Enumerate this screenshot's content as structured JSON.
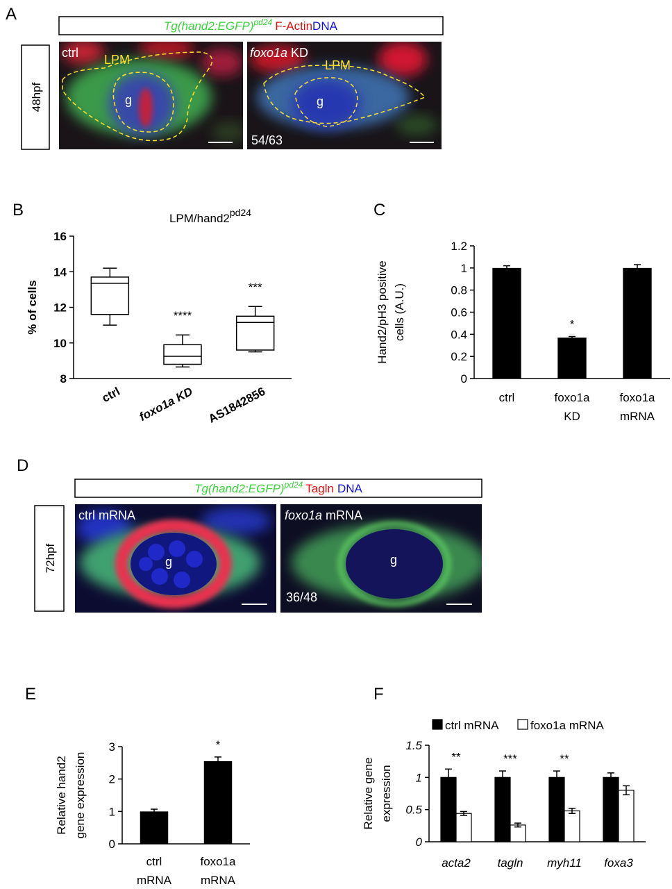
{
  "panel_labels": [
    "A",
    "B",
    "C",
    "D",
    "E",
    "F"
  ],
  "panel_a": {
    "header": [
      "Tg(hand2:EGFP)",
      "pd24",
      "F-Actin",
      "DNA"
    ],
    "stage": "48hpf",
    "left": {
      "label": "ctrl",
      "region": "LPM",
      "gut": "g"
    },
    "right": {
      "label_italic": "foxo1a",
      "label": "KD",
      "region": "LPM",
      "gut": "g",
      "count": "54/63"
    }
  },
  "panel_d": {
    "header": [
      "Tg(hand2:EGFP)",
      "pd24",
      "Tagln",
      "DNA"
    ],
    "stage": "72hpf",
    "left": {
      "label": "ctrl mRNA",
      "gut": "g"
    },
    "right": {
      "label_italic": "foxo1a",
      "label": "mRNA",
      "gut": "g",
      "count": "36/48"
    }
  },
  "chart_data": [
    {
      "type": "box",
      "title": "LPM/hand2",
      "title_sup": "pd24",
      "ylabel": "% of cells",
      "categories": [
        "ctrl",
        "foxo1a KD",
        "AS1842856"
      ],
      "boxes": [
        {
          "min": 11.0,
          "q1": 11.6,
          "median": 13.35,
          "q3": 13.7,
          "max": 14.2
        },
        {
          "min": 8.65,
          "q1": 8.8,
          "median": 9.25,
          "q3": 9.9,
          "max": 10.45
        },
        {
          "min": 9.5,
          "q1": 9.6,
          "median": 11.15,
          "q3": 11.5,
          "max": 12.05
        }
      ],
      "ylim": [
        8,
        16
      ],
      "yticks": [
        8,
        10,
        12,
        14,
        16
      ],
      "annotations": [
        {
          "index": 1,
          "text": "****"
        },
        {
          "index": 2,
          "text": "***"
        }
      ]
    },
    {
      "type": "bar",
      "ylabel": [
        "Hand2/pH3 positive",
        "cells (A.U.)"
      ],
      "categories": [
        [
          "ctrl"
        ],
        [
          "foxo1a",
          "KD"
        ],
        [
          "foxo1a",
          "mRNA"
        ]
      ],
      "values": [
        1,
        0.37,
        1
      ],
      "errors": [
        0.02,
        0.01,
        0.03
      ],
      "color": "#000000",
      "ylim": [
        0,
        1.2
      ],
      "yticks": [
        0,
        0.2,
        0.4,
        0.6,
        0.8,
        1,
        1.2
      ],
      "annotations": [
        {
          "index": 1,
          "text": "*"
        }
      ]
    },
    {
      "type": "bar",
      "ylabel": [
        "Relative hand2",
        "gene expression"
      ],
      "categories": [
        [
          "ctrl",
          "mRNA"
        ],
        [
          "foxo1a",
          "mRNA"
        ]
      ],
      "values": [
        1,
        2.55
      ],
      "errors": [
        0.07,
        0.13
      ],
      "color": "#000000",
      "ylim": [
        0,
        3
      ],
      "yticks": [
        0,
        1,
        2,
        3
      ],
      "annotations": [
        {
          "index": 1,
          "text": "*"
        }
      ]
    },
    {
      "type": "grouped_bar",
      "ylabel": [
        "Relative gene",
        "expression"
      ],
      "categories": [
        "acta2",
        "tagln",
        "myh11",
        "foxa3"
      ],
      "series": [
        {
          "name": "ctrl mRNA",
          "color": "#000000",
          "values": [
            1,
            1,
            1,
            1
          ],
          "errors": [
            0.13,
            0.1,
            0.1,
            0.07
          ]
        },
        {
          "name": "foxo1a mRNA",
          "color": "#ffffff",
          "values": [
            0.44,
            0.26,
            0.48,
            0.8
          ],
          "errors": [
            0.03,
            0.03,
            0.04,
            0.07
          ]
        }
      ],
      "ylim": [
        0,
        1.5
      ],
      "yticks": [
        0,
        0.5,
        1,
        1.5
      ],
      "annotations": [
        {
          "index": 0,
          "text": "**"
        },
        {
          "index": 1,
          "text": "***"
        },
        {
          "index": 2,
          "text": "**"
        }
      ],
      "legend": "top"
    }
  ]
}
